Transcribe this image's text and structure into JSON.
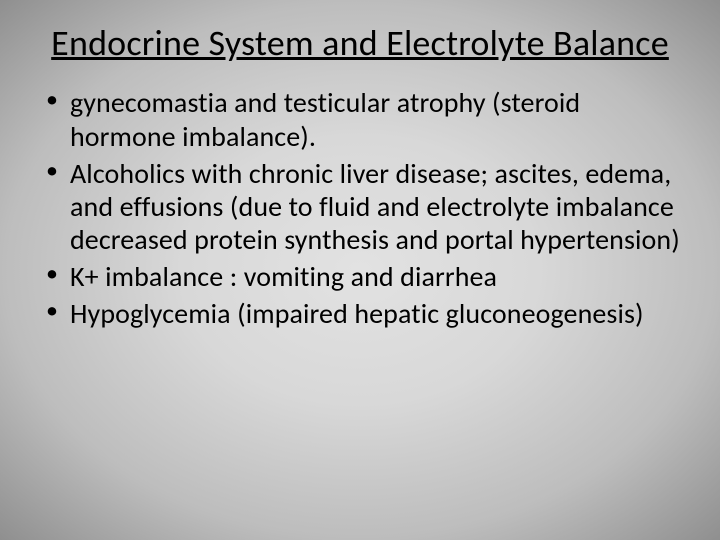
{
  "slide": {
    "title": "Endocrine System and Electrolyte Balance",
    "bullets": [
      "gynecomastia and testicular atrophy (steroid hormone imbalance).",
      "Alcoholics with chronic liver disease; ascites, edema, and effusions (due to fluid and electrolyte imbalance decreased protein synthesis and portal hypertension)",
      "K+ imbalance : vomiting and diarrhea",
      "Hypoglycemia (impaired hepatic gluconeogenesis)"
    ],
    "background": {
      "center_color": "#e2e2e2",
      "mid_color": "#d8d8d8",
      "outer_color": "#bdbdbd",
      "edge_color": "#8f8f8f"
    },
    "typography": {
      "title_fontsize": 36,
      "body_fontsize": 28,
      "font_family": "Calibri",
      "title_underline": true,
      "text_color": "#000000"
    }
  }
}
